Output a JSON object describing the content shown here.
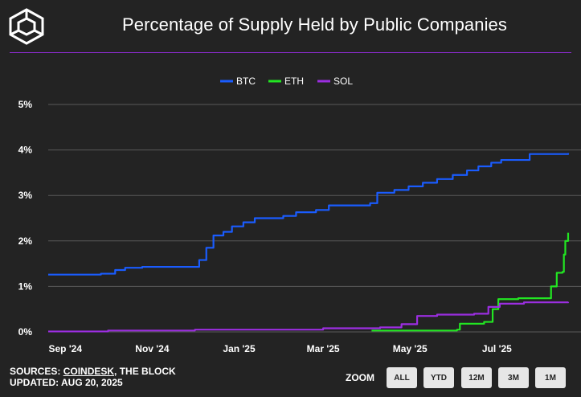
{
  "header": {
    "title": "Percentage of Supply Held by Public Companies"
  },
  "footer": {
    "sources_prefix": "SOURCES: ",
    "sources_link": "COINDESK",
    "sources_suffix": ", THE BLOCK",
    "updated": "UPDATED: AUG 20, 2025"
  },
  "zoom": {
    "label": "ZOOM",
    "buttons": [
      "ALL",
      "YTD",
      "12M",
      "3M",
      "1M"
    ]
  },
  "colors": {
    "background": "#232323",
    "divider": "#8f2bd4",
    "btc": "#1a5cff",
    "eth": "#22e622",
    "sol": "#9b2ee0",
    "grid": "#5a5a5a"
  },
  "chart_data": {
    "type": "line",
    "title": "Percentage of Supply Held by Public Companies",
    "x_axis": {
      "type": "date",
      "range": [
        "2025-08-20",
        "2025-08-20"
      ],
      "start": "2024-08-20",
      "end": "2025-08-20",
      "tick_labels": [
        "Sep '24",
        "Nov '24",
        "Jan '25",
        "Mar '25",
        "May '25",
        "Jul '25"
      ],
      "tick_dates": [
        "2024-09-01",
        "2024-11-01",
        "2025-01-01",
        "2025-03-01",
        "2025-05-01",
        "2025-07-01"
      ]
    },
    "y_axis": {
      "range": [
        0,
        5
      ],
      "tick_labels": [
        "0%",
        "1%",
        "2%",
        "3%",
        "4%",
        "5%"
      ],
      "tick_values": [
        0,
        1,
        2,
        3,
        4,
        5
      ]
    },
    "grid": true,
    "legend_position": "top-center",
    "series": [
      {
        "name": "BTC",
        "color": "#1a5cff",
        "points": [
          [
            "2024-08-20",
            1.26
          ],
          [
            "2024-09-26",
            1.28
          ],
          [
            "2024-10-06",
            1.36
          ],
          [
            "2024-10-13",
            1.41
          ],
          [
            "2024-10-25",
            1.43
          ],
          [
            "2024-12-04",
            1.58
          ],
          [
            "2024-12-09",
            1.85
          ],
          [
            "2024-12-14",
            2.12
          ],
          [
            "2024-12-21",
            2.2
          ],
          [
            "2024-12-27",
            2.32
          ],
          [
            "2025-01-04",
            2.41
          ],
          [
            "2025-01-12",
            2.5
          ],
          [
            "2025-02-01",
            2.55
          ],
          [
            "2025-02-10",
            2.63
          ],
          [
            "2025-02-24",
            2.68
          ],
          [
            "2025-03-05",
            2.78
          ],
          [
            "2025-04-03",
            2.83
          ],
          [
            "2025-04-08",
            3.06
          ],
          [
            "2025-04-20",
            3.12
          ],
          [
            "2025-04-30",
            3.2
          ],
          [
            "2025-05-10",
            3.28
          ],
          [
            "2025-05-20",
            3.36
          ],
          [
            "2025-05-31",
            3.45
          ],
          [
            "2025-06-10",
            3.55
          ],
          [
            "2025-06-18",
            3.64
          ],
          [
            "2025-06-27",
            3.72
          ],
          [
            "2025-07-04",
            3.78
          ],
          [
            "2025-07-24",
            3.91
          ],
          [
            "2025-08-20",
            3.93
          ]
        ]
      },
      {
        "name": "ETH",
        "color": "#22e622",
        "points": [
          [
            "2025-04-04",
            0.03
          ],
          [
            "2025-06-03",
            0.05
          ],
          [
            "2025-06-05",
            0.18
          ],
          [
            "2025-06-22",
            0.22
          ],
          [
            "2025-06-28",
            0.5
          ],
          [
            "2025-07-02",
            0.72
          ],
          [
            "2025-07-16",
            0.74
          ],
          [
            "2025-08-08",
            1.0
          ],
          [
            "2025-08-12",
            1.3
          ],
          [
            "2025-08-16",
            1.32
          ],
          [
            "2025-08-17",
            1.7
          ],
          [
            "2025-08-18",
            2.0
          ],
          [
            "2025-08-20",
            2.18
          ]
        ]
      },
      {
        "name": "SOL",
        "color": "#9b2ee0",
        "points": [
          [
            "2024-08-20",
            0.01
          ],
          [
            "2024-10-01",
            0.03
          ],
          [
            "2024-12-01",
            0.05
          ],
          [
            "2025-03-01",
            0.08
          ],
          [
            "2025-04-10",
            0.1
          ],
          [
            "2025-04-25",
            0.17
          ],
          [
            "2025-05-06",
            0.35
          ],
          [
            "2025-05-20",
            0.38
          ],
          [
            "2025-06-15",
            0.4
          ],
          [
            "2025-06-25",
            0.55
          ],
          [
            "2025-07-03",
            0.62
          ],
          [
            "2025-07-20",
            0.65
          ],
          [
            "2025-08-20",
            0.66
          ]
        ]
      }
    ]
  }
}
